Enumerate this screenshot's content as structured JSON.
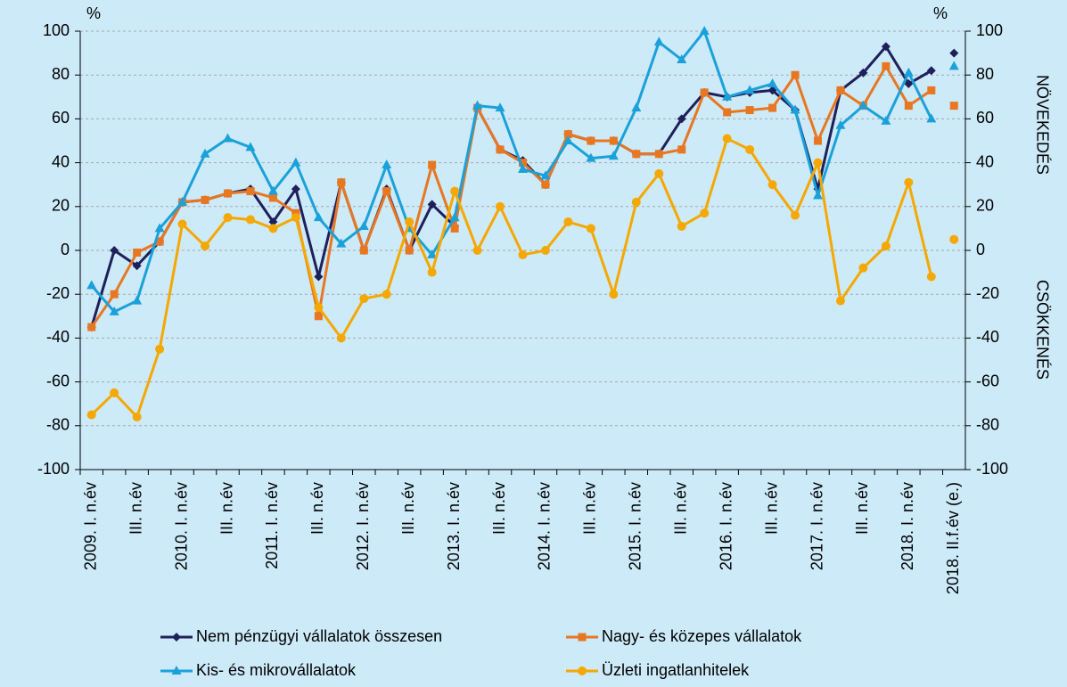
{
  "chart_data": {
    "type": "line",
    "categories": [
      "2009. I. n.év",
      null,
      "III. n.év",
      null,
      "2010. I. n.év",
      null,
      "III. n.év",
      null,
      "2011. I. n.év",
      null,
      "III. n.év",
      null,
      "2012. I. n.év",
      null,
      "III. n.év",
      null,
      "2013. I. n.év",
      null,
      "III. n.év",
      null,
      "2014. I. n.év",
      null,
      "III. n.év",
      null,
      "2015. I. n.év",
      null,
      "III. n.év",
      null,
      "2016. I. n.év",
      null,
      "III. n.év",
      null,
      "2017. I. n.év",
      null,
      "III. n.év",
      null,
      "2018. I. n.év",
      null,
      "2018. II.f.év (e.)"
    ],
    "series": [
      {
        "name": "Nem pénzügyi vállalatok összesen",
        "color": "#1f1f5c",
        "marker": "diamond",
        "values": [
          -35,
          0,
          -7,
          4,
          22,
          23,
          26,
          28,
          13,
          28,
          -12,
          31,
          0,
          28,
          0,
          21,
          11,
          65,
          46,
          41,
          30,
          53,
          50,
          50,
          44,
          44,
          60,
          72,
          70,
          72,
          73,
          64,
          28,
          73,
          81,
          93,
          76,
          82,
          90
        ]
      },
      {
        "name": "Nagy- és közepes vállalatok",
        "color": "#e87722",
        "marker": "square",
        "values": [
          -35,
          -20,
          -1,
          4,
          22,
          23,
          26,
          27,
          24,
          17,
          -30,
          31,
          0,
          27,
          0,
          39,
          10,
          65,
          46,
          40,
          30,
          53,
          50,
          50,
          44,
          44,
          46,
          72,
          63,
          64,
          65,
          80,
          50,
          73,
          66,
          84,
          66,
          73,
          66
        ]
      },
      {
        "name": "Kis- és mikrovállalatok",
        "color": "#1ba1d9",
        "marker": "triangle",
        "values": [
          -16,
          -28,
          -23,
          10,
          22,
          44,
          51,
          47,
          27,
          40,
          15,
          3,
          11,
          39,
          10,
          -2,
          15,
          66,
          65,
          37,
          34,
          50,
          42,
          43,
          65,
          95,
          87,
          100,
          70,
          73,
          76,
          64,
          25,
          57,
          66,
          59,
          81,
          60,
          84
        ]
      },
      {
        "name": "Üzleti ingatlanhitelek",
        "color": "#f5a800",
        "marker": "circle",
        "values": [
          -75,
          -65,
          -76,
          -45,
          12,
          2,
          15,
          14,
          10,
          15,
          -26,
          -40,
          -22,
          -20,
          13,
          -10,
          27,
          0,
          20,
          -2,
          0,
          13,
          10,
          -20,
          22,
          35,
          11,
          17,
          51,
          46,
          30,
          16,
          40,
          -23,
          -8,
          2,
          31,
          -12,
          5
        ]
      }
    ],
    "last_point_unconnected": true,
    "ylim": [
      -100,
      100
    ],
    "yticks": [
      -100,
      -80,
      -60,
      -40,
      -20,
      0,
      20,
      40,
      60,
      80,
      100
    ],
    "y2lim": [
      -100,
      100
    ],
    "y2ticks": [
      -100,
      -80,
      -60,
      -40,
      -20,
      0,
      20,
      40,
      60,
      80,
      100
    ],
    "y_unit": "%",
    "y2_unit": "%",
    "upper_annotation": "NÖVEKEDÉS",
    "lower_annotation": "CSÖKKENÉS",
    "grid": true,
    "legend": "bottom"
  }
}
